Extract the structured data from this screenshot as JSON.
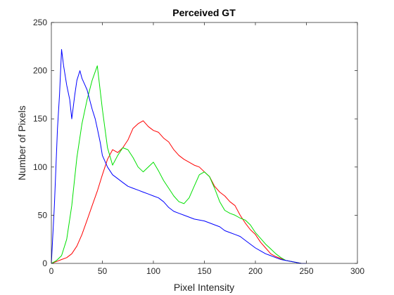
{
  "chart_data": {
    "type": "line",
    "title": "Perceived GT",
    "xlabel": "Pixel Intensity",
    "ylabel": "Number of Pixels",
    "xlim": [
      0,
      300
    ],
    "ylim": [
      0,
      250
    ],
    "xticks": [
      0,
      50,
      100,
      150,
      200,
      250,
      300
    ],
    "yticks": [
      0,
      50,
      100,
      150,
      200,
      250
    ],
    "xtick_labels": [
      "0",
      "50",
      "100",
      "150",
      "200",
      "250",
      "300"
    ],
    "ytick_labels": [
      "0",
      "50",
      "100",
      "150",
      "200",
      "250"
    ],
    "grid": false,
    "legend": "none",
    "series": [
      {
        "color": "#ff0000",
        "x": [
          0,
          5,
          10,
          15,
          20,
          25,
          30,
          35,
          40,
          45,
          50,
          55,
          60,
          65,
          70,
          75,
          80,
          85,
          90,
          95,
          100,
          105,
          110,
          115,
          120,
          125,
          130,
          135,
          140,
          145,
          150,
          155,
          160,
          165,
          170,
          175,
          180,
          185,
          190,
          195,
          200,
          205,
          210,
          215,
          220,
          225,
          230,
          235,
          240,
          245,
          250
        ],
        "y": [
          0,
          2,
          4,
          6,
          10,
          18,
          30,
          45,
          60,
          75,
          92,
          108,
          118,
          115,
          120,
          128,
          140,
          145,
          148,
          142,
          138,
          136,
          130,
          126,
          118,
          112,
          108,
          105,
          102,
          100,
          95,
          90,
          80,
          74,
          70,
          64,
          60,
          50,
          42,
          35,
          30,
          22,
          16,
          10,
          7,
          5,
          3,
          2,
          1,
          0,
          0
        ]
      },
      {
        "color": "#00e000",
        "x": [
          0,
          5,
          10,
          15,
          20,
          25,
          30,
          35,
          40,
          45,
          50,
          55,
          60,
          65,
          70,
          75,
          80,
          85,
          90,
          95,
          100,
          105,
          110,
          115,
          120,
          125,
          130,
          135,
          140,
          145,
          150,
          155,
          160,
          165,
          170,
          175,
          180,
          185,
          190,
          195,
          200,
          205,
          210,
          215,
          220,
          225,
          230,
          235,
          240,
          245,
          250
        ],
        "y": [
          0,
          3,
          8,
          25,
          60,
          110,
          145,
          170,
          190,
          205,
          160,
          120,
          102,
          112,
          120,
          118,
          110,
          100,
          95,
          100,
          105,
          96,
          86,
          78,
          70,
          64,
          62,
          68,
          80,
          92,
          95,
          90,
          78,
          64,
          55,
          52,
          50,
          47,
          45,
          40,
          32,
          26,
          20,
          15,
          10,
          6,
          3,
          2,
          1,
          0,
          0
        ]
      },
      {
        "color": "#0000ff",
        "x": [
          0,
          3,
          6,
          8,
          10,
          12,
          15,
          18,
          20,
          23,
          25,
          28,
          30,
          33,
          35,
          38,
          40,
          43,
          45,
          48,
          50,
          55,
          60,
          65,
          70,
          75,
          80,
          85,
          90,
          95,
          100,
          105,
          110,
          115,
          120,
          125,
          130,
          135,
          140,
          145,
          150,
          155,
          160,
          165,
          170,
          175,
          180,
          185,
          190,
          195,
          200,
          205,
          210,
          215,
          220,
          225,
          230,
          235,
          240,
          245,
          250
        ],
        "y": [
          0,
          60,
          140,
          175,
          222,
          205,
          185,
          170,
          150,
          175,
          190,
          200,
          192,
          185,
          180,
          168,
          160,
          150,
          140,
          125,
          112,
          100,
          92,
          88,
          84,
          80,
          78,
          76,
          74,
          72,
          70,
          68,
          64,
          58,
          54,
          52,
          50,
          48,
          46,
          45,
          44,
          42,
          40,
          38,
          34,
          32,
          30,
          28,
          24,
          20,
          16,
          13,
          10,
          8,
          6,
          4,
          3,
          2,
          1,
          0,
          0
        ]
      }
    ]
  }
}
